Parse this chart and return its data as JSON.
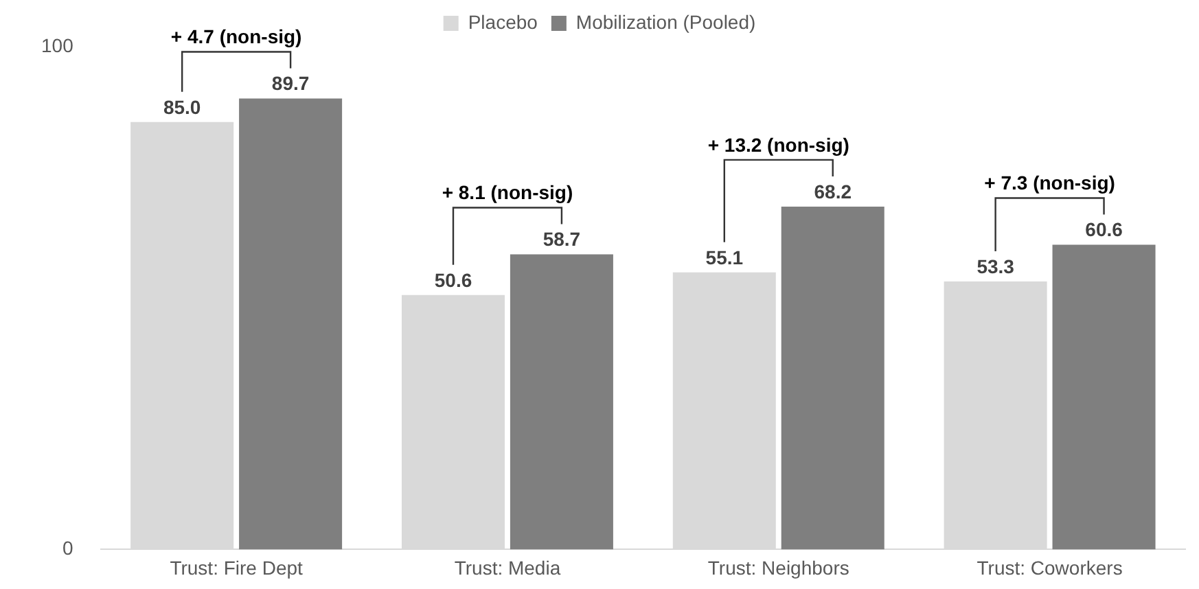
{
  "chart_data": {
    "type": "bar",
    "categories": [
      "Trust: Fire Dept",
      "Trust: Media",
      "Trust: Neighbors",
      "Trust: Coworkers"
    ],
    "series": [
      {
        "name": "Placebo",
        "color": "#d9d9d9",
        "values": [
          85.0,
          50.6,
          55.1,
          53.3
        ],
        "value_labels": [
          "85.0",
          "50.6",
          "55.1",
          "53.3"
        ]
      },
      {
        "name": "Mobilization (Pooled)",
        "color": "#7f7f7f",
        "values": [
          89.7,
          58.7,
          68.2,
          60.6
        ],
        "value_labels": [
          "89.7",
          "58.7",
          "68.2",
          "60.6"
        ]
      }
    ],
    "ylim": [
      0,
      100
    ],
    "yticks": [
      0,
      100
    ],
    "grid": false,
    "legend": "top",
    "annotations": [
      "+ 4.7 (non-sig)",
      "+ 8.1 (non-sig)",
      "+ 13.2 (non-sig)",
      "+ 7.3 (non-sig)"
    ]
  }
}
